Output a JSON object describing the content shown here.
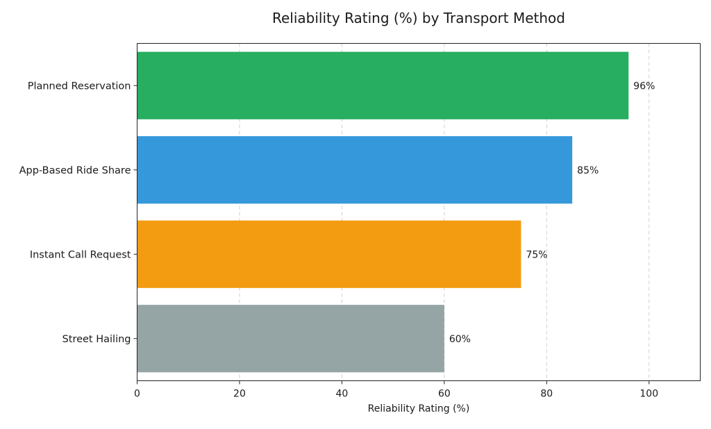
{
  "chart_data": {
    "type": "bar",
    "orientation": "horizontal",
    "title": "Reliability Rating (%) by Transport Method",
    "xlabel": "Reliability Rating (%)",
    "ylabel": "",
    "xlim": [
      0,
      110
    ],
    "xticks": [
      0,
      20,
      40,
      60,
      80,
      100
    ],
    "grid": true,
    "categories": [
      "Planned Reservation",
      "App-Based Ride Share",
      "Instant Call Request",
      "Street Hailing"
    ],
    "values": [
      96,
      85,
      75,
      60
    ],
    "data_labels": [
      "96%",
      "85%",
      "75%",
      "60%"
    ],
    "colors": [
      "#27ae60",
      "#3498db",
      "#f39c12",
      "#95a5a6"
    ]
  }
}
